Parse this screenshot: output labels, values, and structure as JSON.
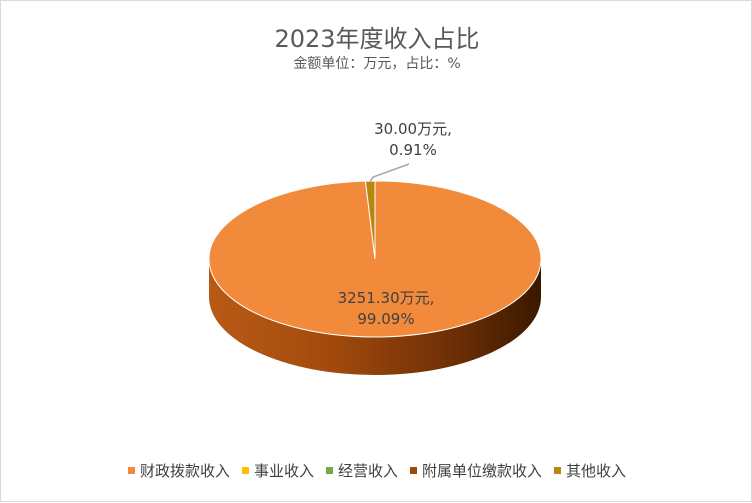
{
  "chart_data": {
    "type": "pie",
    "style": "3d",
    "title": "2023年度收入占比",
    "subtitle": "金额单位：万元，占比：%",
    "unit": "万元",
    "legend_position": "bottom",
    "categories": [
      "财政拨款收入",
      "事业收入",
      "经营收入",
      "附属单位缴款收入",
      "其他收入"
    ],
    "values": [
      3251.3,
      0,
      0,
      0,
      30.0
    ],
    "percentages": [
      99.09,
      0,
      0,
      0,
      0.91
    ],
    "colors": [
      "#F28A3B",
      "#FFC000",
      "#70AD47",
      "#9E480E",
      "#B8860B"
    ],
    "data_labels": [
      {
        "index": 0,
        "line1": "3251.30万元,",
        "line2": "99.09%"
      },
      {
        "index": 4,
        "line1": "30.00万元,",
        "line2": "0.91%"
      }
    ]
  }
}
